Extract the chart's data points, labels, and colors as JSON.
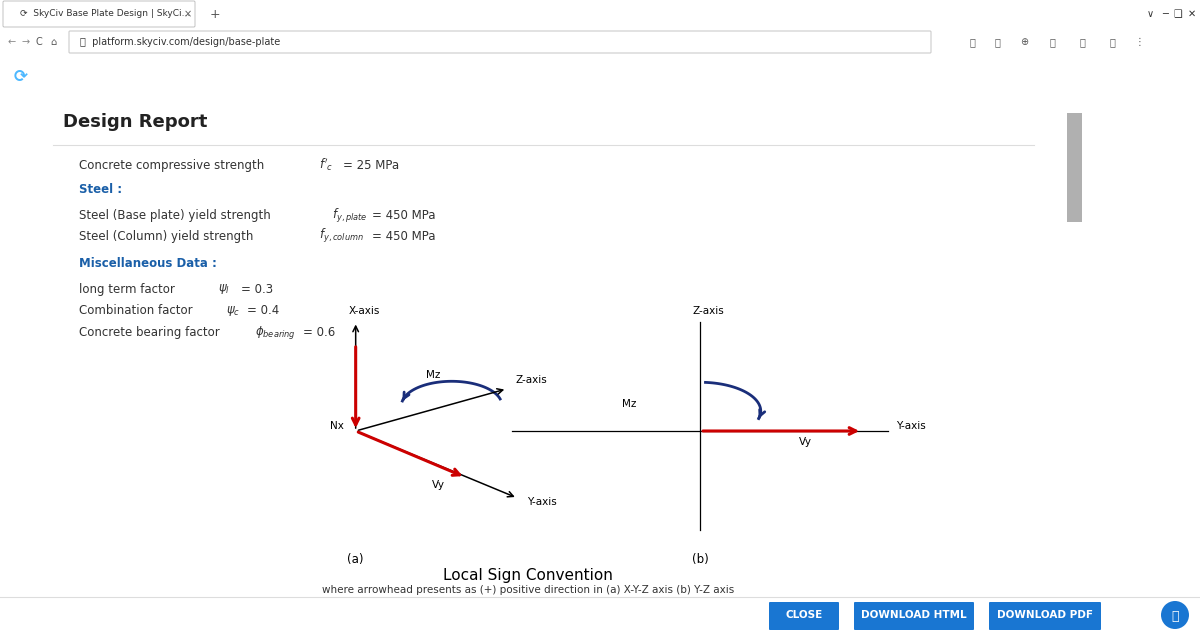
{
  "bg_color": "#ffffff",
  "browser_tab_color": "#e8e8e8",
  "browser_bar_color": "#f1f3f4",
  "nav_bar_color": "#555555",
  "content_bg": "#ffffff",
  "title": "Design Report",
  "title_color": "#222222",
  "section_heading_color": "#1a5fa8",
  "text_color": "#333333",
  "diagram_title": "Local Sign Convention",
  "diagram_subtitle": "where arrowhead presents as (+) positive direction in (a) X-Y-Z axis (b) Y-Z axis",
  "red_color": "#cc0000",
  "blue_color": "#1a2e7a",
  "black_color": "#111111",
  "gray_color": "#888888",
  "scrollbar_color": "#cccccc",
  "border_color": "#dddddd",
  "btn_color": "#1976d2",
  "btn_text_color": "#ffffff"
}
